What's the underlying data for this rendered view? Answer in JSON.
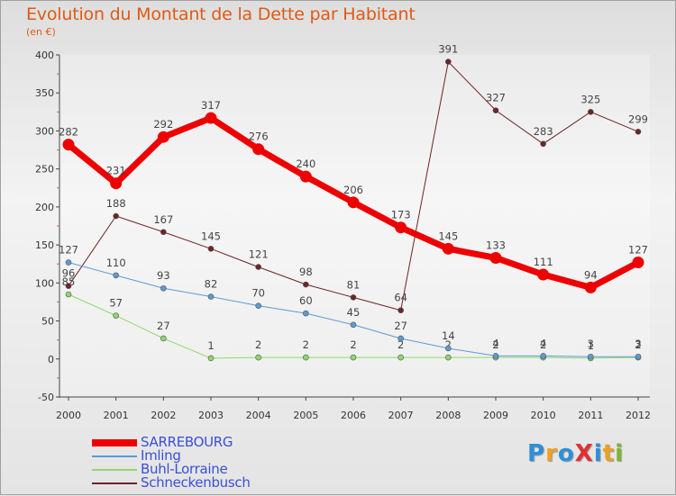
{
  "title": "Evolution du Montant de la Dette par Habitant",
  "subtitle": "(en €)",
  "logo": {
    "text": "ProXiti",
    "letters": [
      "P",
      "r",
      "o",
      "X",
      "i",
      "t",
      "i"
    ],
    "colors": [
      "#2e8fd8",
      "#f0a020",
      "#2e8fd8",
      "#e03030",
      "#2e8fd8",
      "#f0a020",
      "#7ab82e"
    ]
  },
  "chart_data": {
    "type": "line",
    "title": "Evolution du Montant de la Dette par Habitant",
    "ylabel": "(en €)",
    "xlabel": "",
    "ylim": [
      -50,
      400
    ],
    "yticks": [
      "-50",
      "0",
      "50",
      "100",
      "150",
      "200",
      "250",
      "300",
      "350",
      "400"
    ],
    "categories": [
      "2000",
      "2001",
      "2002",
      "2003",
      "2004",
      "2005",
      "2006",
      "2007",
      "2008",
      "2009",
      "2010",
      "2011",
      "2012"
    ],
    "series": [
      {
        "name": "Schneckenbusch",
        "color": "#6e2426",
        "width": 1,
        "values": [
          96,
          188,
          167,
          145,
          121,
          98,
          81,
          64,
          391,
          327,
          283,
          325,
          299
        ],
        "labels": [
          "96",
          "188",
          "167",
          "145",
          "121",
          "98",
          "81",
          "64",
          "391",
          "327",
          "283",
          "325",
          "299"
        ]
      },
      {
        "name": "Buhl-Lorraine",
        "color": "#8fd86a",
        "width": 1,
        "values": [
          85,
          57,
          27,
          1,
          2,
          2,
          2,
          2,
          2,
          2,
          2,
          1,
          2
        ],
        "labels": [
          "85",
          "57",
          "27",
          "1",
          "2",
          "2",
          "2",
          "2",
          "2",
          "2",
          "2",
          "1",
          "2"
        ]
      },
      {
        "name": "Imling",
        "color": "#5b9bd5",
        "width": 1,
        "values": [
          127,
          110,
          93,
          82,
          70,
          60,
          45,
          27,
          14,
          4,
          4,
          3,
          3
        ],
        "labels": [
          "127",
          "110",
          "93",
          "82",
          "70",
          "60",
          "45",
          "27",
          "14",
          "4",
          "4",
          "3",
          "3"
        ]
      },
      {
        "name": "SARREBOURG",
        "color": "#ee0000",
        "width": 7,
        "values": [
          282,
          231,
          292,
          317,
          276,
          240,
          206,
          173,
          145,
          133,
          111,
          94,
          127
        ],
        "labels": [
          "282",
          "231",
          "292",
          "317",
          "276",
          "240",
          "206",
          "173",
          "145",
          "133",
          "111",
          "94",
          "127"
        ]
      }
    ],
    "legend": [
      "SARREBOURG",
      "Imling",
      "Buhl-Lorraine",
      "Schneckenbusch"
    ],
    "grid": false,
    "legend_position": "bottom-left"
  }
}
